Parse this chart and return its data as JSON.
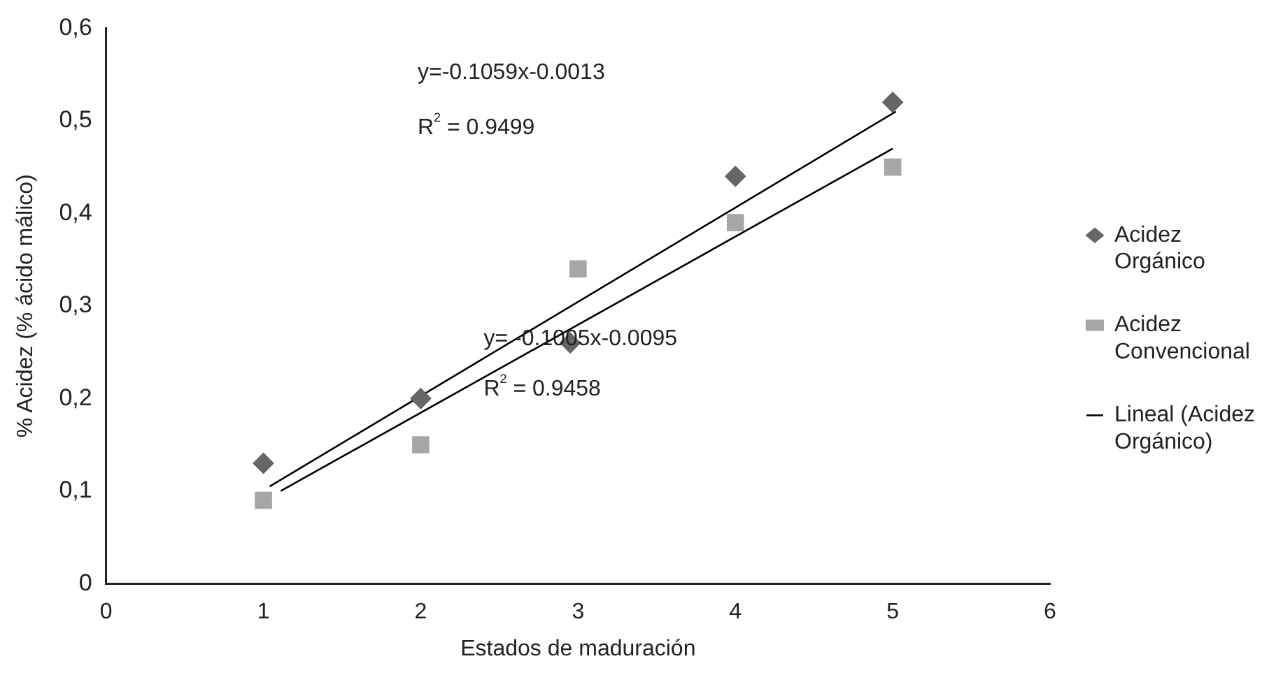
{
  "chart_data": {
    "type": "scatter",
    "xlabel": "Estados de maduración",
    "ylabel": "% Acidez (% ácido málico)",
    "xlim": [
      0,
      6
    ],
    "xticks": [
      0,
      1,
      2,
      3,
      4,
      5,
      6
    ],
    "ylim": [
      0,
      0.6
    ],
    "yticks": [
      {
        "value": 0,
        "label": "0"
      },
      {
        "value": 0.1,
        "label": "0,1"
      },
      {
        "value": 0.2,
        "label": "0,2"
      },
      {
        "value": 0.3,
        "label": "0,3"
      },
      {
        "value": 0.4,
        "label": "0,4"
      },
      {
        "value": 0.5,
        "label": "0,5"
      },
      {
        "value": 0.6,
        "label": "0,6"
      }
    ],
    "grid": false,
    "legend": "right",
    "series": [
      {
        "name": "Acidez Orgánico",
        "marker": "diamond",
        "color": "#666666",
        "x": [
          1,
          2,
          2.95,
          4,
          5
        ],
        "values": [
          0.13,
          0.2,
          0.26,
          0.44,
          0.52
        ]
      },
      {
        "name": "Acidez Convencional",
        "marker": "square",
        "color": "#a6a6a8",
        "x": [
          1,
          2,
          3,
          4,
          5
        ],
        "values": [
          0.09,
          0.15,
          0.34,
          0.39,
          0.45
        ]
      },
      {
        "name": "Lineal (Acidez Orgánico)",
        "type": "line",
        "marker": "none",
        "color": "#000000",
        "x": [
          1.04,
          5.02
        ],
        "values": [
          0.105,
          0.51
        ]
      },
      {
        "type": "line",
        "marker": "none",
        "color": "#000000",
        "x": [
          1.11,
          5.0
        ],
        "values": [
          0.1,
          0.47
        ]
      }
    ],
    "annotations": [
      "y=-0.1059x-0.0013",
      "R$^{2}$ = 0.9499",
      "y= -0.1005x-0.0095",
      "R$^{2}$ = 0.9458"
    ]
  }
}
